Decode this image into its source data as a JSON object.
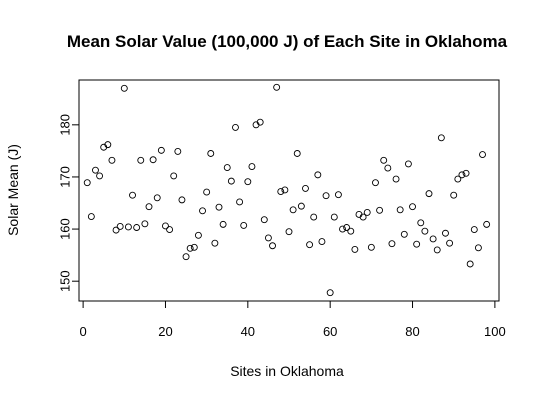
{
  "chart_data": {
    "type": "scatter",
    "title": "Mean Solar Value (100,000 J) of Each Site in Oklahoma",
    "xlabel": "Sites in Oklahoma",
    "ylabel": "Solar Mean (J)",
    "xlim": [
      -1,
      101
    ],
    "ylim": [
      146.2,
      188.6
    ],
    "xticks": [
      0,
      20,
      40,
      60,
      80,
      100
    ],
    "yticks": [
      150,
      160,
      170,
      180
    ],
    "grid": false,
    "legend": "none",
    "marker_color": "#000000",
    "x": [
      1,
      2,
      3,
      4,
      5,
      6,
      7,
      8,
      9,
      10,
      11,
      12,
      13,
      14,
      15,
      16,
      17,
      18,
      19,
      20,
      21,
      22,
      23,
      24,
      25,
      26,
      27,
      28,
      29,
      30,
      31,
      32,
      33,
      34,
      35,
      36,
      37,
      38,
      39,
      40,
      41,
      42,
      43,
      44,
      45,
      46,
      47,
      48,
      49,
      50,
      51,
      52,
      53,
      54,
      55,
      56,
      57,
      58,
      59,
      60,
      61,
      62,
      63,
      64,
      65,
      66,
      67,
      68,
      69,
      70,
      71,
      72,
      73,
      74,
      75,
      76,
      77,
      78,
      79,
      80,
      81,
      82,
      83,
      84,
      85,
      86,
      87,
      88,
      89,
      90,
      91,
      92,
      93,
      94,
      95,
      96,
      97,
      98
    ],
    "y": [
      168.9,
      162.4,
      171.3,
      170.2,
      175.7,
      176.2,
      173.2,
      159.8,
      160.5,
      187.0,
      160.4,
      166.5,
      160.3,
      173.2,
      161.0,
      164.3,
      173.3,
      166.0,
      175.1,
      160.6,
      159.9,
      170.2,
      174.9,
      165.6,
      154.7,
      156.3,
      156.5,
      158.8,
      163.5,
      167.1,
      174.5,
      157.3,
      164.2,
      160.9,
      171.8,
      169.2,
      179.5,
      165.2,
      160.7,
      169.1,
      172.0,
      180.0,
      180.5,
      161.8,
      158.3,
      156.8,
      187.2,
      167.2,
      167.5,
      159.5,
      163.7,
      174.5,
      164.4,
      167.8,
      157.0,
      162.3,
      170.4,
      157.6,
      166.4,
      147.8,
      162.3,
      166.6,
      160.0,
      160.3,
      159.6,
      156.1,
      162.8,
      162.3,
      163.2,
      156.5,
      168.9,
      163.6,
      173.2,
      171.7,
      157.2,
      169.6,
      163.7,
      159.0,
      172.5,
      164.3,
      157.1,
      161.2,
      159.6,
      166.8,
      158.1,
      156.0,
      177.5,
      159.2,
      157.3,
      166.5,
      169.6,
      170.4,
      170.7,
      153.3,
      159.9,
      156.4,
      174.3,
      160.9
    ]
  }
}
